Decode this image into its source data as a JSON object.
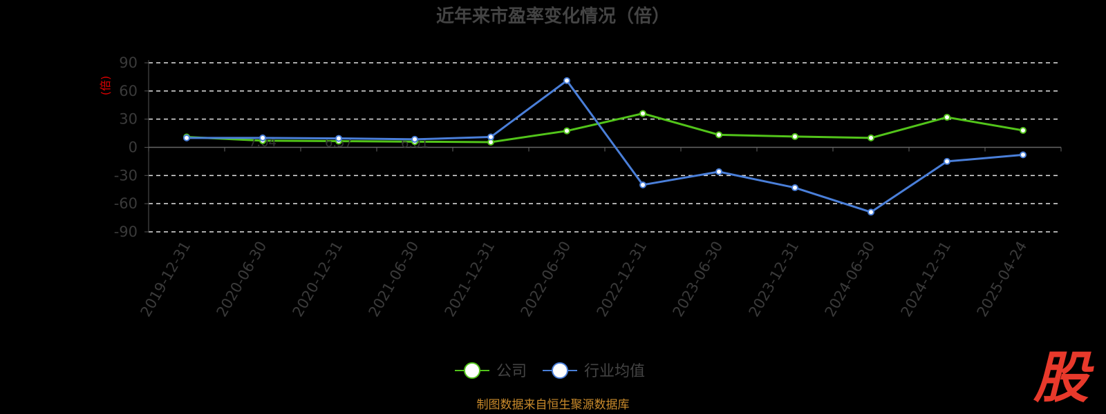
{
  "chart_data": {
    "type": "line",
    "title": "近年来市盈率变化情况（倍）",
    "ylabel": "(倍)",
    "ylim": [
      -90,
      90
    ],
    "yticks": [
      90,
      60,
      30,
      0,
      -30,
      -60,
      -90
    ],
    "grid": true,
    "legend_position": "bottom",
    "categories": [
      "2019-12-31",
      "2020-06-30",
      "2020-12-31",
      "2021-06-30",
      "2021-12-31",
      "2022-06-30",
      "2022-12-31",
      "2023-06-30",
      "2023-12-31",
      "2024-06-30",
      "2024-12-31",
      "2025-04-24"
    ],
    "series": [
      {
        "name": "公司",
        "color": "#52c41a",
        "values": [
          11.0,
          7.04,
          6.57,
          6.01,
          5.5,
          17.5,
          36.0,
          13.32,
          11.46,
          10.0,
          32.0,
          18.0
        ],
        "labels": [
          "",
          "7.04",
          "6.57",
          "6.01",
          "",
          "",
          "",
          "",
          "",
          "",
          "",
          ""
        ]
      },
      {
        "name": "行业均值",
        "color": "#4a7fd9",
        "values": [
          10.0,
          10.0,
          9.5,
          8.5,
          11.0,
          71.0,
          -40.0,
          -26.0,
          -43.0,
          -69.0,
          -15.0,
          -8.0
        ],
        "labels": []
      }
    ]
  },
  "source_text": "制图数据来自恒生聚源数据库",
  "logo_text": "股"
}
